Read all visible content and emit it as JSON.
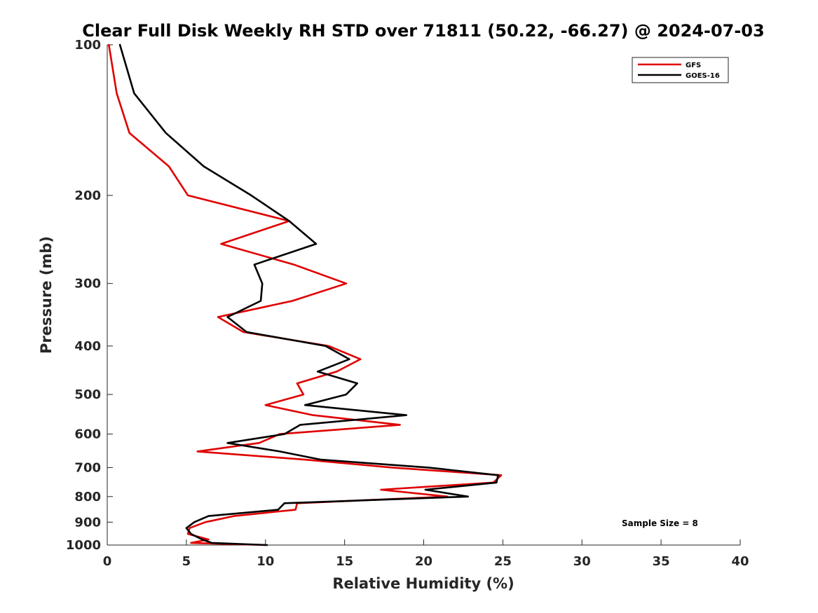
{
  "chart_data": {
    "type": "line",
    "title": "Clear Full Disk Weekly RH STD over 71811 (50.22, -66.27) @ 2024-07-03",
    "xlabel": "Relative Humidity (%)",
    "ylabel": "Pressure (mb)",
    "xlim": [
      0,
      40
    ],
    "ylim": [
      100,
      1000
    ],
    "y_scale": "log",
    "y_reversed": true,
    "x_ticks": [
      0,
      5,
      10,
      15,
      20,
      25,
      30,
      35,
      40
    ],
    "x_tick_labels": [
      "0",
      "5",
      "10",
      "15",
      "20",
      "25",
      "30",
      "35",
      "40"
    ],
    "y_ticks": [
      100,
      200,
      300,
      400,
      500,
      600,
      700,
      800,
      900,
      1000
    ],
    "y_tick_labels": [
      "100",
      "200",
      "300",
      "400",
      "500",
      "600",
      "700",
      "800",
      "900",
      "1000"
    ],
    "grid": false,
    "legend_position": "top-right",
    "annotation": "Sample Size = 8",
    "series": [
      {
        "name": "GFS",
        "color": "#e00000",
        "points": [
          [
            0.1,
            100
          ],
          [
            0.6,
            125
          ],
          [
            1.4,
            150
          ],
          [
            3.9,
            175
          ],
          [
            5.1,
            200
          ],
          [
            11.5,
            225
          ],
          [
            7.2,
            250
          ],
          [
            11.8,
            275
          ],
          [
            15.1,
            300
          ],
          [
            11.7,
            325
          ],
          [
            7.0,
            350
          ],
          [
            8.6,
            375
          ],
          [
            14.0,
            400
          ],
          [
            16.0,
            425
          ],
          [
            14.5,
            450
          ],
          [
            12.0,
            475
          ],
          [
            12.4,
            500
          ],
          [
            10.0,
            525
          ],
          [
            13.0,
            550
          ],
          [
            18.5,
            575
          ],
          [
            10.9,
            600
          ],
          [
            9.6,
            625
          ],
          [
            5.7,
            650
          ],
          [
            12.5,
            675
          ],
          [
            18.0,
            700
          ],
          [
            24.9,
            725
          ],
          [
            24.4,
            750
          ],
          [
            17.3,
            775
          ],
          [
            21.5,
            800
          ],
          [
            12.0,
            825
          ],
          [
            11.9,
            850
          ],
          [
            8.0,
            875
          ],
          [
            6.2,
            900
          ],
          [
            5.2,
            925
          ],
          [
            5.1,
            950
          ],
          [
            6.4,
            975
          ],
          [
            5.3,
            990
          ],
          [
            10.0,
            1000
          ]
        ]
      },
      {
        "name": "GOES-16",
        "color": "#000000",
        "points": [
          [
            0.8,
            100
          ],
          [
            1.7,
            125
          ],
          [
            3.7,
            150
          ],
          [
            6.1,
            175
          ],
          [
            9.1,
            200
          ],
          [
            11.5,
            225
          ],
          [
            13.2,
            250
          ],
          [
            9.3,
            275
          ],
          [
            9.8,
            300
          ],
          [
            9.7,
            325
          ],
          [
            7.6,
            350
          ],
          [
            8.8,
            375
          ],
          [
            13.8,
            400
          ],
          [
            15.3,
            425
          ],
          [
            13.3,
            450
          ],
          [
            15.8,
            475
          ],
          [
            15.1,
            500
          ],
          [
            12.5,
            525
          ],
          [
            18.9,
            550
          ],
          [
            12.2,
            575
          ],
          [
            11.2,
            600
          ],
          [
            7.6,
            625
          ],
          [
            10.9,
            650
          ],
          [
            13.5,
            675
          ],
          [
            20.3,
            700
          ],
          [
            24.7,
            725
          ],
          [
            24.6,
            750
          ],
          [
            20.1,
            775
          ],
          [
            22.8,
            800
          ],
          [
            11.2,
            825
          ],
          [
            10.8,
            850
          ],
          [
            6.4,
            875
          ],
          [
            5.5,
            900
          ],
          [
            5.0,
            925
          ],
          [
            5.3,
            950
          ],
          [
            6.0,
            975
          ],
          [
            6.6,
            990
          ],
          [
            10.1,
            1000
          ]
        ]
      }
    ]
  }
}
